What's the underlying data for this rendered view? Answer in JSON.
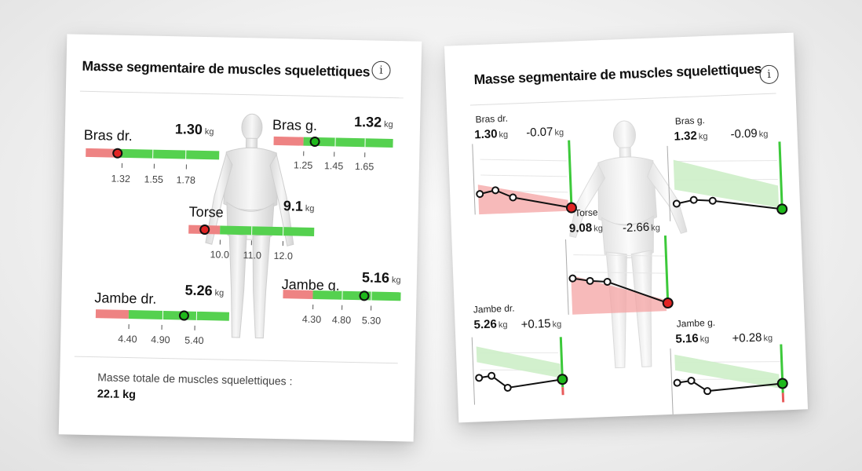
{
  "left_card": {
    "title": "Masse segmentaire de muscles squelettiques",
    "info_icon": "info-icon",
    "segments": {
      "right_arm": {
        "label": "Bras dr.",
        "value": "1.30",
        "unit": "kg",
        "ticks": [
          "1.32",
          "1.55",
          "1.78"
        ],
        "status": "below-range"
      },
      "left_arm": {
        "label": "Bras g.",
        "value": "1.32",
        "unit": "kg",
        "ticks": [
          "1.25",
          "1.45",
          "1.65"
        ],
        "status": "in-range"
      },
      "torso": {
        "label": "Torse",
        "value": "9.1",
        "unit": "kg",
        "ticks": [
          "10.0",
          "11.0",
          "12.0"
        ],
        "status": "below-range"
      },
      "right_leg": {
        "label": "Jambe dr.",
        "value": "5.26",
        "unit": "kg",
        "ticks": [
          "4.40",
          "4.90",
          "5.40"
        ],
        "status": "in-range"
      },
      "left_leg": {
        "label": "Jambe g.",
        "value": "5.16",
        "unit": "kg",
        "ticks": [
          "4.30",
          "4.80",
          "5.30"
        ],
        "status": "in-range"
      }
    },
    "total_label": "Masse totale de muscles squelettiques :",
    "total_value": "22.1 kg"
  },
  "right_card": {
    "title": "Masse segmentaire de muscles squelettiques",
    "info_icon": "info-icon",
    "segments": {
      "right_arm": {
        "label": "Bras dr.",
        "value": "1.30",
        "unit": "kg",
        "delta": "-0.07",
        "delta_unit": "kg",
        "status": "below-range"
      },
      "left_arm": {
        "label": "Bras g.",
        "value": "1.32",
        "unit": "kg",
        "delta": "-0.09",
        "delta_unit": "kg",
        "status": "in-range"
      },
      "torso": {
        "label": "Torse",
        "value": "9.08",
        "unit": "kg",
        "delta": "-2.66",
        "delta_unit": "kg",
        "status": "below-range"
      },
      "right_leg": {
        "label": "Jambe dr.",
        "value": "5.26",
        "unit": "kg",
        "delta": "+0.15",
        "delta_unit": "kg",
        "status": "in-range"
      },
      "left_leg": {
        "label": "Jambe g.",
        "value": "5.16",
        "unit": "kg",
        "delta": "+0.28",
        "delta_unit": "kg",
        "status": "in-range"
      }
    }
  },
  "colors": {
    "red": "#ee8383",
    "green": "#55d14f",
    "marker_red": "#e12424",
    "marker_green": "#1fb81b",
    "band_red": "#f4a3a3",
    "band_green": "#cdeec8"
  }
}
